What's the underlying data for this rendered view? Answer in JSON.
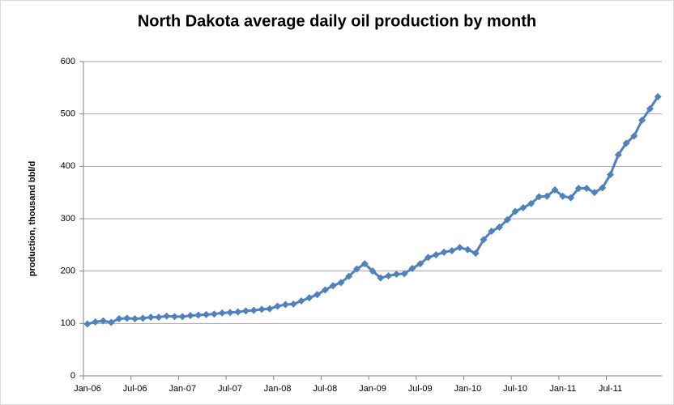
{
  "chart_data": {
    "type": "line",
    "title": "North Dakota average daily oil production by month",
    "y_label": "production, thousand bbl/d",
    "categories": [
      "Jan-06",
      null,
      null,
      null,
      null,
      null,
      "Jul-06",
      null,
      null,
      null,
      null,
      null,
      "Jan-07",
      null,
      null,
      null,
      null,
      null,
      "Jul-07",
      null,
      null,
      null,
      null,
      null,
      "Jan-08",
      null,
      null,
      null,
      null,
      null,
      "Jul-08",
      null,
      null,
      null,
      null,
      null,
      "Jan-09",
      null,
      null,
      null,
      null,
      null,
      "Jul-09",
      null,
      null,
      null,
      null,
      null,
      "Jan-10",
      null,
      null,
      null,
      null,
      null,
      "Jul-10",
      null,
      null,
      null,
      null,
      null,
      "Jan-11",
      null,
      null,
      null,
      null,
      null,
      "Jul-11",
      null,
      null,
      null,
      null,
      null,
      null
    ],
    "values": [
      99,
      103,
      105,
      102,
      109,
      110,
      109,
      110,
      112,
      112,
      114,
      113,
      113,
      115,
      116,
      117,
      118,
      120,
      121,
      122,
      124,
      125,
      127,
      128,
      133,
      136,
      137,
      143,
      149,
      155,
      164,
      172,
      178,
      190,
      204,
      214,
      200,
      187,
      191,
      194,
      195,
      205,
      214,
      226,
      231,
      236,
      239,
      245,
      241,
      234,
      260,
      276,
      284,
      298,
      314,
      321,
      329,
      342,
      343,
      355,
      343,
      340,
      358,
      358,
      350,
      359,
      384,
      422,
      444,
      458,
      488,
      510,
      533
    ],
    "color": "#4f81bd",
    "ylim": [
      0,
      600
    ],
    "yticks": [
      0,
      100,
      200,
      300,
      400,
      500,
      600
    ],
    "grid": true
  }
}
